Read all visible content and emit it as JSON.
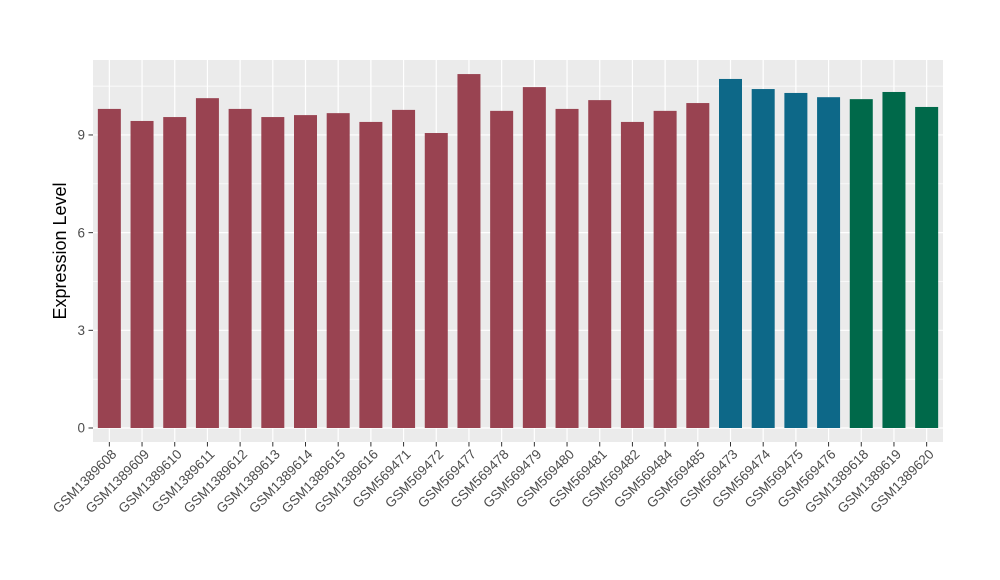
{
  "chart_data": {
    "type": "bar",
    "title": "",
    "xlabel": "",
    "ylabel": "Expression Level",
    "categories": [
      "GSM1389608",
      "GSM1389609",
      "GSM1389610",
      "GSM1389611",
      "GSM1389612",
      "GSM1389613",
      "GSM1389614",
      "GSM1389615",
      "GSM1389616",
      "GSM569471",
      "GSM569472",
      "GSM569477",
      "GSM569478",
      "GSM569479",
      "GSM569480",
      "GSM569481",
      "GSM569482",
      "GSM569484",
      "GSM569485",
      "GSM569473",
      "GSM569474",
      "GSM569475",
      "GSM569476",
      "GSM1389618",
      "GSM1389619",
      "GSM1389620"
    ],
    "values": [
      9.8,
      9.43,
      9.55,
      10.13,
      9.8,
      9.55,
      9.61,
      9.67,
      9.4,
      9.77,
      9.06,
      10.87,
      9.74,
      10.47,
      9.8,
      10.07,
      9.4,
      9.74,
      9.98,
      10.72,
      10.41,
      10.29,
      10.16,
      10.1,
      10.32,
      9.86
    ],
    "groups": [
      "group1",
      "group1",
      "group1",
      "group1",
      "group1",
      "group1",
      "group1",
      "group1",
      "group1",
      "group1",
      "group1",
      "group1",
      "group1",
      "group1",
      "group1",
      "group1",
      "group1",
      "group1",
      "group1",
      "group2",
      "group2",
      "group2",
      "group2",
      "group3",
      "group3",
      "group3"
    ],
    "group_colors": {
      "group1": "#994351",
      "group2": "#0D6888",
      "group3": "#00694A"
    },
    "y_ticks": [
      "0",
      "3",
      "6",
      "9"
    ],
    "y_tick_values": [
      0,
      3,
      6,
      9
    ],
    "y_minor_tick_values": [
      1.5,
      4.5,
      7.5,
      10.5
    ],
    "ylim": [
      0,
      11.2
    ],
    "grid": "major+minor",
    "legend_position": "none",
    "panel_background": "#EBEBEB",
    "grid_color": "#FFFFFF",
    "axis_text_color": "#4D4D4D",
    "axis_title_color": "#000000",
    "tick_mark_color": "#333333"
  }
}
